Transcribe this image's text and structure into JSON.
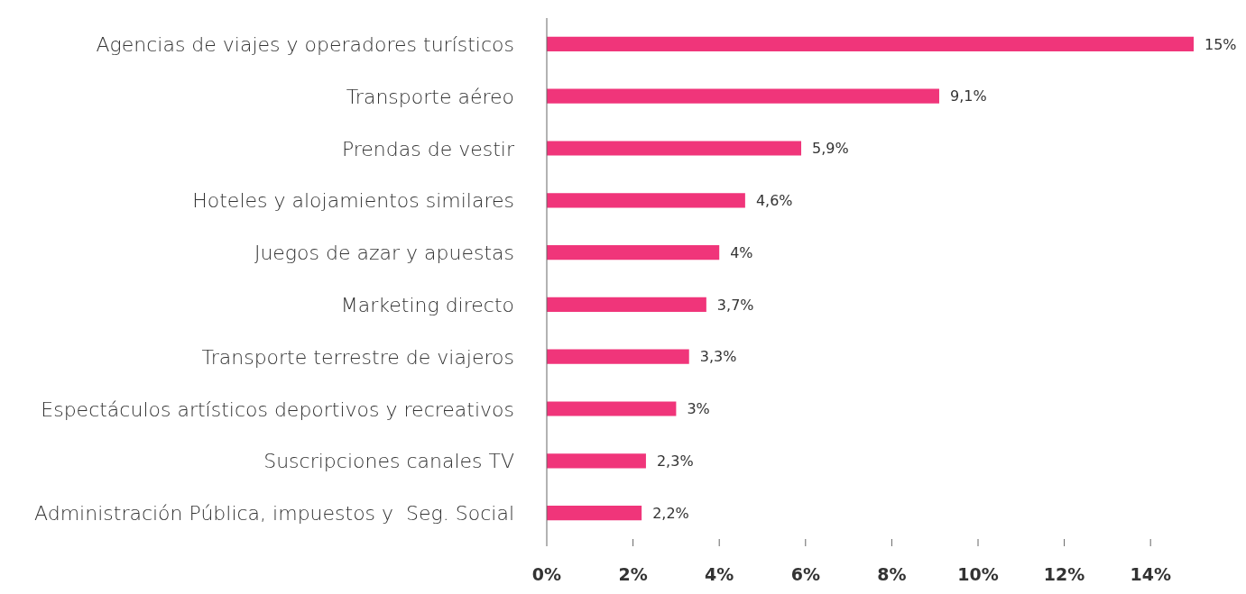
{
  "chart_data": {
    "type": "bar",
    "orientation": "horizontal",
    "categories": [
      "Agencias de viajes y operadores turísticos",
      "Transporte aéreo",
      "Prendas de vestir",
      "Hoteles y alojamientos similares",
      "Juegos de azar y apuestas",
      "Marketing directo",
      "Transporte terrestre de viajeros",
      "Espectáculos artísticos deportivos y recreativos",
      "Suscripciones canales TV",
      "Administración Pública, impuestos y  Seg. Social"
    ],
    "values": [
      15,
      9.1,
      5.9,
      4.6,
      4,
      3.7,
      3.3,
      3,
      2.3,
      2.2
    ],
    "value_labels": [
      "15%",
      "9,1%",
      "5,9%",
      "4,6%",
      "4%",
      "3,7%",
      "3,3%",
      "3%",
      "2,3%",
      "2,2%"
    ],
    "color": "#f0357a",
    "xlim": [
      0,
      15
    ],
    "xticks": [
      {
        "value": 0,
        "label": "0%"
      },
      {
        "value": 2,
        "label": "2%"
      },
      {
        "value": 4,
        "label": "4%"
      },
      {
        "value": 6,
        "label": "6%"
      },
      {
        "value": 8,
        "label": "8%"
      },
      {
        "value": 10,
        "label": "10%"
      },
      {
        "value": 12,
        "label": "12%"
      },
      {
        "value": 14,
        "label": "14%"
      }
    ],
    "grid": false,
    "legend": false
  }
}
